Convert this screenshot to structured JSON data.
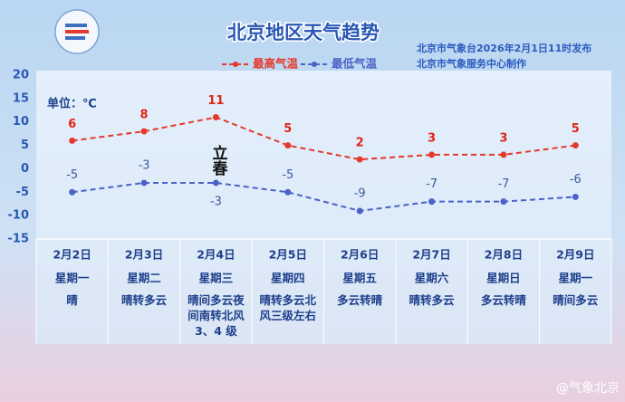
{
  "chart_data": {
    "type": "line",
    "title": "北京地区天气趋势",
    "subtitle": [
      "北京市气象台2026年2月1日11时发布",
      "北京市气象服务中心制作"
    ],
    "unit_label": "单位：℃",
    "annotation": "立春",
    "categories": [
      "2月2日",
      "2月3日",
      "2月4日",
      "2月5日",
      "2月6日",
      "2月7日",
      "2月8日",
      "2月9日"
    ],
    "weekdays": [
      "星期一",
      "星期二",
      "星期三",
      "星期四",
      "星期五",
      "星期六",
      "星期日",
      "星期一"
    ],
    "weather": [
      "晴",
      "晴转多云",
      "晴间多云夜间南转北风 3、4 级",
      "晴转多云北风三级左右",
      "多云转晴",
      "晴转多云",
      "多云转晴",
      "晴间多云"
    ],
    "series": [
      {
        "name": "最高气温",
        "color": "#e5392d",
        "values": [
          6,
          8,
          11,
          5,
          2,
          3,
          3,
          5
        ]
      },
      {
        "name": "最低气温",
        "color": "#4b62c6",
        "values": [
          -5,
          -3,
          -3,
          -5,
          -9,
          -7,
          -7,
          -6
        ]
      }
    ],
    "ylim": [
      -15,
      20
    ],
    "yticks": [
      -15,
      -10,
      -5,
      0,
      5,
      10,
      15,
      20
    ]
  },
  "watermark": "@气象北京"
}
